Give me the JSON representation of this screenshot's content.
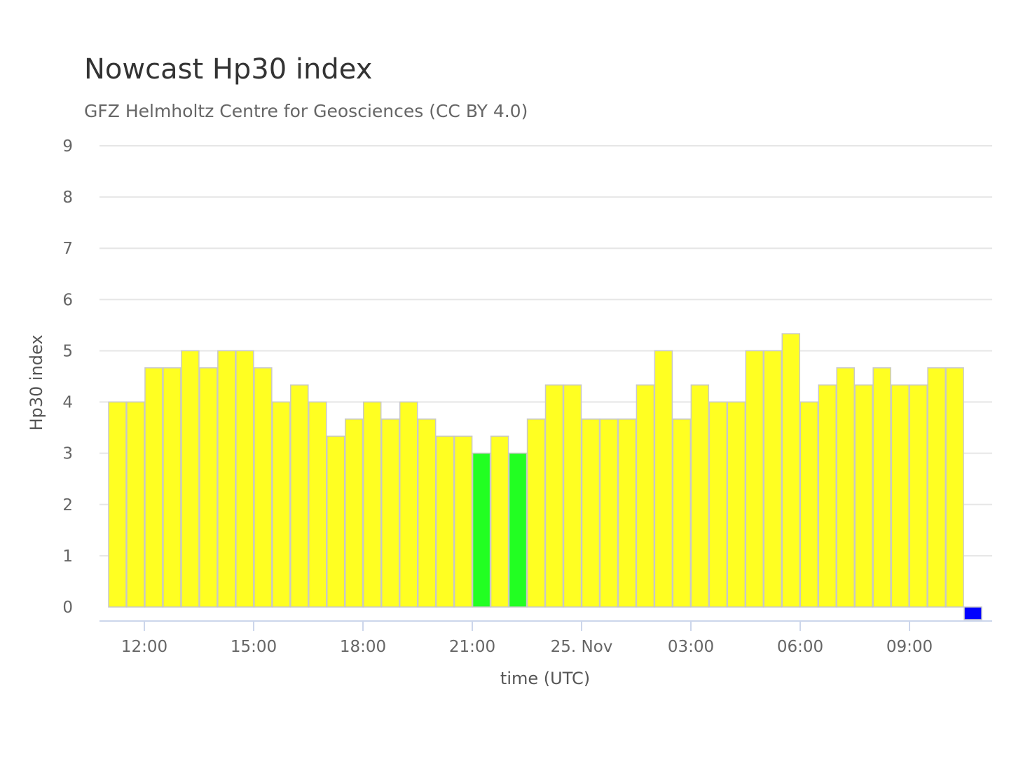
{
  "chart_data": {
    "type": "bar",
    "title": "Nowcast Hp30 index",
    "subtitle": "GFZ Helmholtz Centre for Geosciences (CC BY 4.0)",
    "xlabel": "time (UTC)",
    "ylabel": "Hp30 index",
    "ylim": [
      0,
      9
    ],
    "yticks": [
      0,
      1,
      2,
      3,
      4,
      5,
      6,
      7,
      8,
      9
    ],
    "grid": true,
    "legend": "none",
    "x_ticks": [
      "12:00",
      "15:00",
      "18:00",
      "21:00",
      "25. Nov",
      "03:00",
      "06:00",
      "09:00"
    ],
    "start_time": "24 Nov 11:00",
    "interval_minutes": 30,
    "values": [
      4,
      4,
      4.667,
      4.667,
      5,
      4.667,
      5,
      5,
      4.667,
      4,
      4.333,
      4,
      3.333,
      3.667,
      4,
      3.667,
      4,
      3.667,
      3.333,
      3.333,
      3,
      3.333,
      3,
      3.667,
      4.333,
      4.333,
      3.667,
      3.667,
      3.667,
      4.333,
      5,
      3.667,
      4.333,
      4,
      4,
      5,
      5,
      5.333,
      4,
      4.333,
      4.667,
      4.333,
      4.667,
      4.333,
      4.333,
      4.667,
      4.667,
      0
    ],
    "color_scale": {
      "below_3": "#0000ff",
      "equal_3": "#22ff22",
      "from_3_to_5": "#ffff22"
    },
    "colors": {
      "grid": "#e6e6e6",
      "axis": "#ccd6eb",
      "bar_border": "#c8c8c8",
      "title": "#333333",
      "text": "#666666"
    }
  }
}
